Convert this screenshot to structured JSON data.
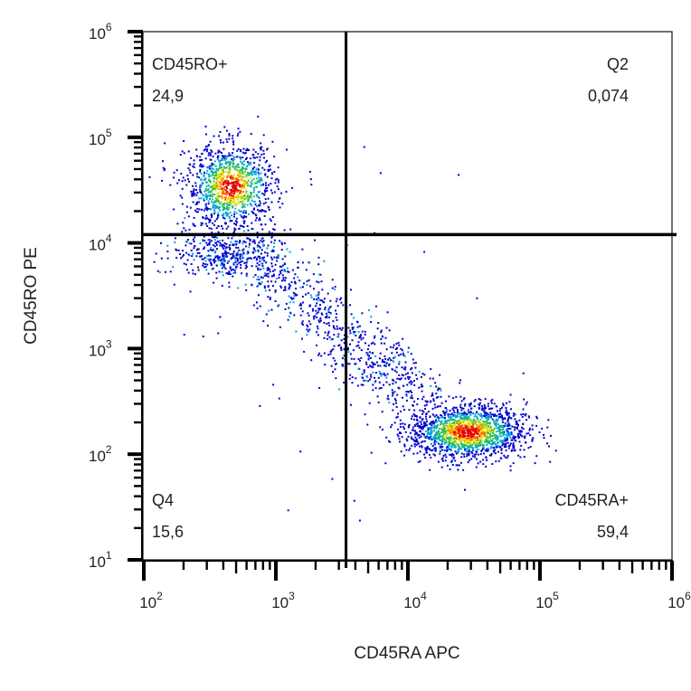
{
  "chart_data": {
    "type": "scatter",
    "title": "",
    "xlabel": "CD45RA APC",
    "ylabel": "CD45RO PE",
    "x_scale": "log",
    "y_scale": "log",
    "xlim": [
      100,
      1000000
    ],
    "ylim": [
      10,
      1000000
    ],
    "grid": false,
    "x_ticks": [
      {
        "base": "10",
        "exp": "2"
      },
      {
        "base": "10",
        "exp": "3"
      },
      {
        "base": "10",
        "exp": "4"
      },
      {
        "base": "10",
        "exp": "5"
      },
      {
        "base": "10",
        "exp": "6"
      }
    ],
    "y_ticks": [
      {
        "base": "10",
        "exp": "1"
      },
      {
        "base": "10",
        "exp": "2"
      },
      {
        "base": "10",
        "exp": "3"
      },
      {
        "base": "10",
        "exp": "4"
      },
      {
        "base": "10",
        "exp": "5"
      },
      {
        "base": "10",
        "exp": "6"
      }
    ],
    "gates": {
      "x": 3400,
      "y": 12000
    },
    "quadrants": [
      {
        "position": "top-left",
        "name": "CD45RO+",
        "value": "24,9"
      },
      {
        "position": "top-right",
        "name": "Q2",
        "value": "0,074"
      },
      {
        "position": "bottom-left",
        "name": "Q4",
        "value": "15,6"
      },
      {
        "position": "bottom-right",
        "name": "CD45RA+",
        "value": "59,4"
      }
    ],
    "populations": [
      {
        "name": "CD45RO+",
        "center": [
          450,
          35000
        ]
      },
      {
        "name": "CD45RA+",
        "center": [
          28000,
          165
        ]
      }
    ],
    "density_colors": [
      "#0000cc",
      "#00a0e0",
      "#20c060",
      "#e8e000",
      "#ff6000",
      "#e00000"
    ]
  }
}
